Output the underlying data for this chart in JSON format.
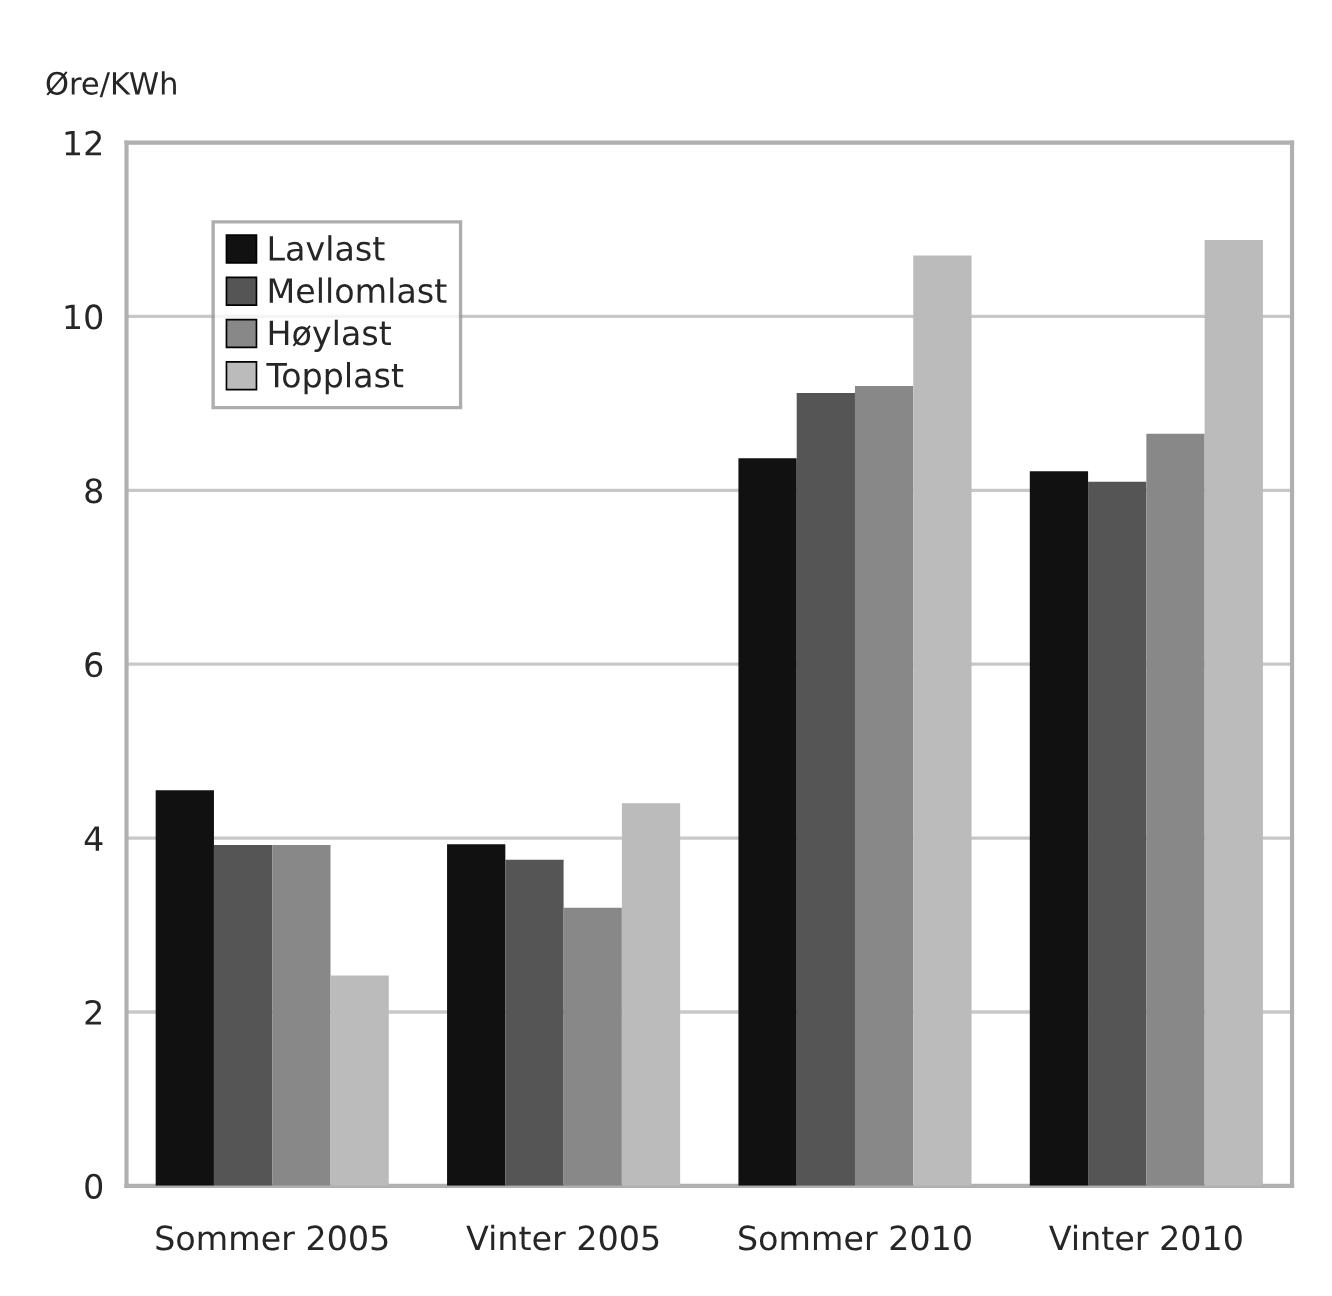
{
  "chart_data": {
    "type": "bar",
    "ylabel": "Øre/KWh",
    "categories": [
      "Sommer 2005",
      "Vinter 2005",
      "Sommer 2010",
      "Vinter 2010"
    ],
    "series": [
      {
        "name": "Lavlast",
        "color": "#111111",
        "values": [
          4.55,
          3.93,
          8.37,
          8.22
        ]
      },
      {
        "name": "Mellomlast",
        "color": "#555555",
        "values": [
          3.92,
          3.75,
          9.12,
          8.1
        ]
      },
      {
        "name": "Høylast",
        "color": "#888888",
        "values": [
          3.92,
          3.2,
          9.2,
          8.65
        ]
      },
      {
        "name": "Topplast",
        "color": "#bbbbbb",
        "values": [
          2.42,
          4.4,
          10.7,
          10.88
        ]
      }
    ],
    "ylim": [
      0,
      12
    ],
    "yticks": [
      0,
      2,
      4,
      6,
      8,
      10,
      12
    ],
    "grid": "y",
    "legend": "top left"
  }
}
